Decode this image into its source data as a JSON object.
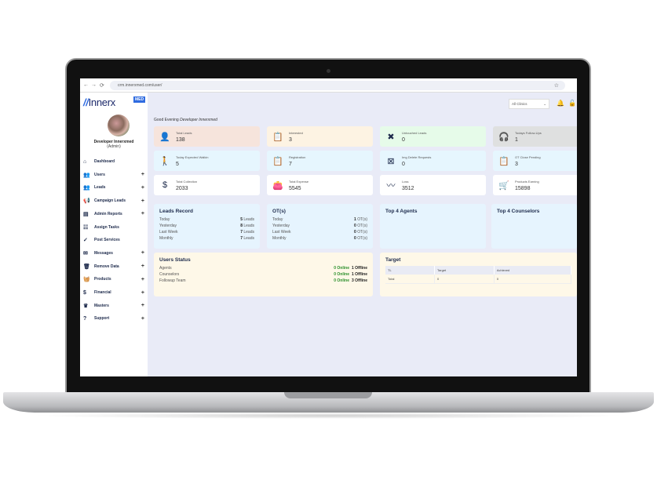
{
  "browser": {
    "url": "crm.innerxmed.com/user/",
    "back": "←",
    "forward": "→",
    "reload": "⟳"
  },
  "brand": {
    "logo_mark": "//",
    "logo_text": "Innerx",
    "badge": "MED"
  },
  "user": {
    "name": "Developer Innerxmed",
    "role": "(Admin)"
  },
  "sidebar": {
    "items": [
      {
        "label": "Dashboard",
        "icon": "home-icon",
        "glyph": "⌂",
        "expand": ""
      },
      {
        "label": "Users",
        "icon": "users-icon",
        "glyph": "👥",
        "expand": "+"
      },
      {
        "label": "Leads",
        "icon": "leads-icon",
        "glyph": "👥",
        "expand": "+"
      },
      {
        "label": "Campaign Leads",
        "icon": "megaphone-icon",
        "glyph": "📢",
        "expand": "+"
      },
      {
        "label": "Admin Reports",
        "icon": "report-icon",
        "glyph": "▤",
        "expand": "+"
      },
      {
        "label": "Assign Tasks",
        "icon": "tasks-icon",
        "glyph": "☷",
        "expand": ""
      },
      {
        "label": "Post Services",
        "icon": "check-icon",
        "glyph": "✓",
        "expand": ""
      },
      {
        "label": "Messages",
        "icon": "mail-icon",
        "glyph": "✉",
        "expand": "+"
      },
      {
        "label": "Remove Data",
        "icon": "trash-icon",
        "glyph": "🗑",
        "expand": "+"
      },
      {
        "label": "Products",
        "icon": "basket-icon",
        "glyph": "🧺",
        "expand": "+"
      },
      {
        "label": "Financial",
        "icon": "dollar-icon",
        "glyph": "$",
        "expand": "+"
      },
      {
        "label": "Masters",
        "icon": "masters-icon",
        "glyph": "♛",
        "expand": "+"
      },
      {
        "label": "Support",
        "icon": "help-icon",
        "glyph": "?",
        "expand": "+"
      }
    ]
  },
  "header": {
    "clinic_select": "All Clinics",
    "bell": "🔔",
    "lock": "🔓"
  },
  "greeting": {
    "prefix": "Good Evening",
    "name": "Developer Innerxmed"
  },
  "cards": [
    {
      "title": "Total Leads",
      "value": "138",
      "glyph": "👤",
      "icon": "user-check-icon",
      "bg": "#f6e4dc"
    },
    {
      "title": "Interested",
      "value": "3",
      "glyph": "📋",
      "icon": "clipboard-check-icon",
      "bg": "#fdf3e3"
    },
    {
      "title": "Untouched Leads",
      "value": "0",
      "glyph": "✖",
      "icon": "user-x-icon",
      "bg": "#e6fbe9"
    },
    {
      "title": "Todays Follow-Ups",
      "value": "1",
      "glyph": "🎧",
      "icon": "headset-icon",
      "bg": "#dfe0e0"
    },
    {
      "title": "Today Expected Walkin",
      "value": "5",
      "glyph": "🚶",
      "icon": "walk-icon",
      "bg": "#e6f6fe"
    },
    {
      "title": "Registration",
      "value": "7",
      "glyph": "📋",
      "icon": "clipboard-icon",
      "bg": "#e6f6fe"
    },
    {
      "title": "Img Delete Requests",
      "value": "0",
      "glyph": "⊠",
      "icon": "image-off-icon",
      "bg": "#e6f6fe"
    },
    {
      "title": "OT Close Pending",
      "value": "3",
      "glyph": "📋",
      "icon": "clipboard-plus-icon",
      "bg": "#e6f6fe"
    },
    {
      "title": "Total Collection",
      "value": "2033",
      "glyph": "$",
      "icon": "receipt-icon",
      "bg": "#ffffff"
    },
    {
      "title": "Total Expense",
      "value": "5545",
      "glyph": "👛",
      "icon": "wallet-icon",
      "bg": "#ffffff"
    },
    {
      "title": "Loss",
      "value": "3512",
      "glyph": "〰",
      "icon": "chart-line-icon",
      "bg": "#ffffff"
    },
    {
      "title": "Products Earning",
      "value": "15898",
      "glyph": "🛒",
      "icon": "cart-icon",
      "bg": "#ffffff"
    }
  ],
  "leads_record": {
    "title": "Leads Record",
    "unit": "Leads",
    "rows": [
      {
        "label": "Today",
        "value": "5"
      },
      {
        "label": "Yesterday",
        "value": "8"
      },
      {
        "label": "Last Week",
        "value": "7"
      },
      {
        "label": "Monthly",
        "value": "7"
      }
    ]
  },
  "ots": {
    "title": "OT(s)",
    "unit": "OT(s)",
    "rows": [
      {
        "label": "Today",
        "value": "1"
      },
      {
        "label": "Yesterday",
        "value": "0"
      },
      {
        "label": "Last Week",
        "value": "0"
      },
      {
        "label": "Monthly",
        "value": "0"
      }
    ]
  },
  "top_agents": {
    "title": "Top 4 Agents"
  },
  "top_counselors": {
    "title": "Top 4 Counselors"
  },
  "users_status": {
    "title": "Users Status",
    "rows": [
      {
        "label": "Agents",
        "online": "0 Online",
        "offline": "1 Offline"
      },
      {
        "label": "Counselors",
        "online": "0 Online",
        "offline": "1 Offline"
      },
      {
        "label": "Followup Team",
        "online": "0 Online",
        "offline": "3 Offline"
      }
    ]
  },
  "target": {
    "title": "Target",
    "columns": [
      "TL",
      "Target",
      "Achieved"
    ],
    "rows": [
      [
        "Total",
        "0",
        "0"
      ]
    ]
  }
}
